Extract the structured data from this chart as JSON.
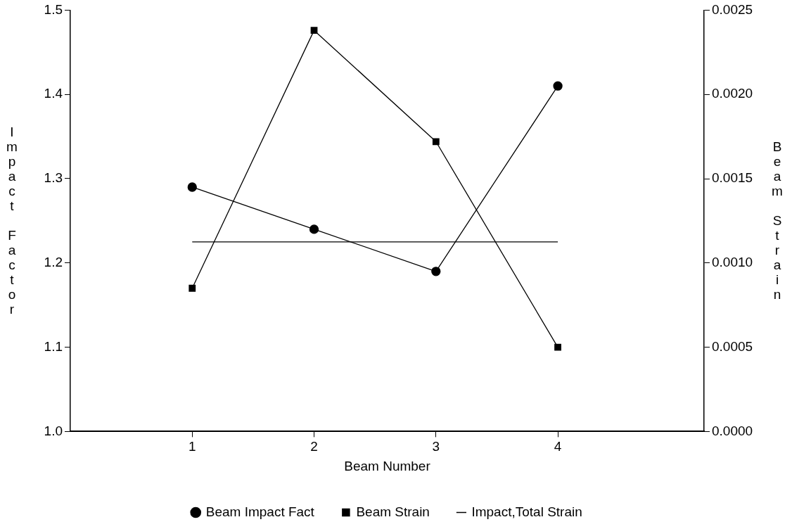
{
  "chart_data": {
    "type": "line",
    "xlabel": "Beam Number",
    "ylabel": "Impact Factor",
    "y2label": "Beam Strain",
    "x": [
      1,
      2,
      3,
      4
    ],
    "xlim": [
      0,
      5.2
    ],
    "xticks": [
      1,
      2,
      3,
      4
    ],
    "ylim": [
      1.0,
      1.5
    ],
    "yticks": [
      {
        "value": 1.0,
        "label": "1.0"
      },
      1.1,
      1.2,
      1.3,
      1.4,
      1.5
    ],
    "y2lim": [
      0,
      0.0025
    ],
    "y2ticks": [
      {
        "value": 0,
        "label": "0.0000"
      },
      {
        "value": 0.0005,
        "label": "0.0005"
      },
      {
        "value": 0.001,
        "label": "0.0010"
      },
      {
        "value": 0.0015,
        "label": "0.0015"
      },
      {
        "value": 0.002,
        "label": "0.0020"
      },
      {
        "value": 0.0025,
        "label": "0.0025"
      }
    ],
    "series": [
      {
        "name": "Beam Impact Fact",
        "color": "#000000",
        "marker": "circle",
        "values": [
          1.29,
          1.24,
          1.19,
          1.41
        ]
      },
      {
        "name": "Beam Strain",
        "color": "#000000",
        "marker": "square",
        "axis": "y2",
        "values": [
          0.00085,
          0.00238,
          0.00172,
          0.0005
        ]
      },
      {
        "name": "Impact,Total Strain",
        "color": "#000000",
        "marker": "none",
        "values": [
          1.225,
          1.225,
          1.225,
          1.225
        ]
      }
    ],
    "grid": false,
    "legend": "bottom",
    "line_style": "solid"
  }
}
